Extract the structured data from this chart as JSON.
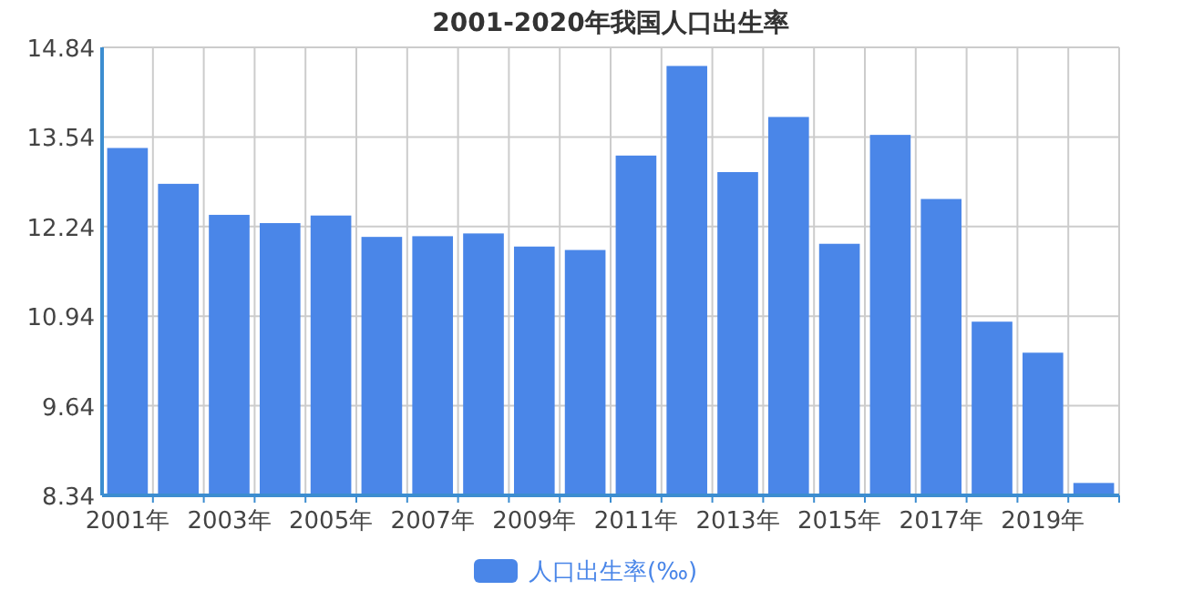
{
  "chart_data": {
    "type": "bar",
    "title": "2001-2020年我国人口出生率",
    "categories": [
      "2001年",
      null,
      "2003年",
      null,
      "2005年",
      null,
      "2007年",
      null,
      "2009年",
      null,
      "2011年",
      null,
      "2013年",
      null,
      "2015年",
      null,
      "2017年",
      null,
      "2019年",
      null
    ],
    "series": [
      {
        "name": "人口出生率(‰)",
        "color": "#4a86e8",
        "values": [
          13.38,
          12.86,
          12.41,
          12.29,
          12.4,
          12.09,
          12.1,
          12.14,
          11.95,
          11.9,
          13.27,
          14.57,
          13.03,
          13.83,
          11.99,
          13.57,
          12.64,
          10.86,
          10.41,
          8.52
        ]
      }
    ],
    "ylim": [
      8.34,
      14.84
    ],
    "yticks": [
      8.34,
      9.64,
      10.94,
      12.24,
      13.54,
      14.84
    ],
    "grid": true,
    "legend": "bottom"
  }
}
